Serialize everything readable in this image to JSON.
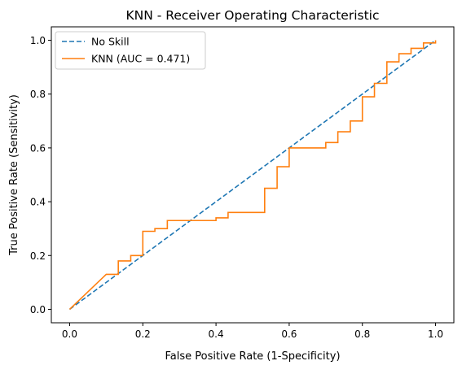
{
  "chart_data": {
    "type": "line",
    "title": "KNN - Receiver Operating Characteristic",
    "xlabel": "False Positive Rate (1-Specificity)",
    "ylabel": "True Positive Rate (Sensitivity)",
    "xlim": [
      -0.05,
      1.05
    ],
    "ylim": [
      -0.05,
      1.05
    ],
    "xticks": [
      0.0,
      0.2,
      0.4,
      0.6,
      0.8,
      1.0
    ],
    "yticks": [
      0.0,
      0.2,
      0.4,
      0.6,
      0.8,
      1.0
    ],
    "xtick_labels": [
      "0.0",
      "0.2",
      "0.4",
      "0.6",
      "0.8",
      "1.0"
    ],
    "ytick_labels": [
      "0.0",
      "0.2",
      "0.4",
      "0.6",
      "0.8",
      "1.0"
    ],
    "grid": false,
    "legend": "top-left",
    "series": [
      {
        "name": "No Skill",
        "style": "dashed",
        "color": "#1f77b4",
        "x": [
          0.0,
          1.0
        ],
        "y": [
          0.0,
          1.0
        ]
      },
      {
        "name": "KNN (AUC = 0.471)",
        "style": "solid",
        "color": "#ff7f0e",
        "x": [
          0.0,
          0.1,
          0.133,
          0.133,
          0.167,
          0.167,
          0.2,
          0.2,
          0.233,
          0.233,
          0.267,
          0.267,
          0.4,
          0.4,
          0.433,
          0.433,
          0.533,
          0.533,
          0.567,
          0.567,
          0.6,
          0.6,
          0.7,
          0.7,
          0.733,
          0.733,
          0.767,
          0.767,
          0.8,
          0.8,
          0.833,
          0.833,
          0.867,
          0.867,
          0.9,
          0.9,
          0.933,
          0.933,
          0.967,
          0.967,
          1.0,
          1.0
        ],
        "y": [
          0.0,
          0.13,
          0.13,
          0.18,
          0.18,
          0.2,
          0.2,
          0.29,
          0.29,
          0.3,
          0.3,
          0.33,
          0.33,
          0.34,
          0.34,
          0.36,
          0.36,
          0.45,
          0.45,
          0.53,
          0.53,
          0.6,
          0.6,
          0.62,
          0.62,
          0.66,
          0.66,
          0.7,
          0.7,
          0.79,
          0.79,
          0.84,
          0.84,
          0.92,
          0.92,
          0.95,
          0.95,
          0.97,
          0.97,
          0.99,
          0.99,
          1.0
        ]
      }
    ]
  }
}
